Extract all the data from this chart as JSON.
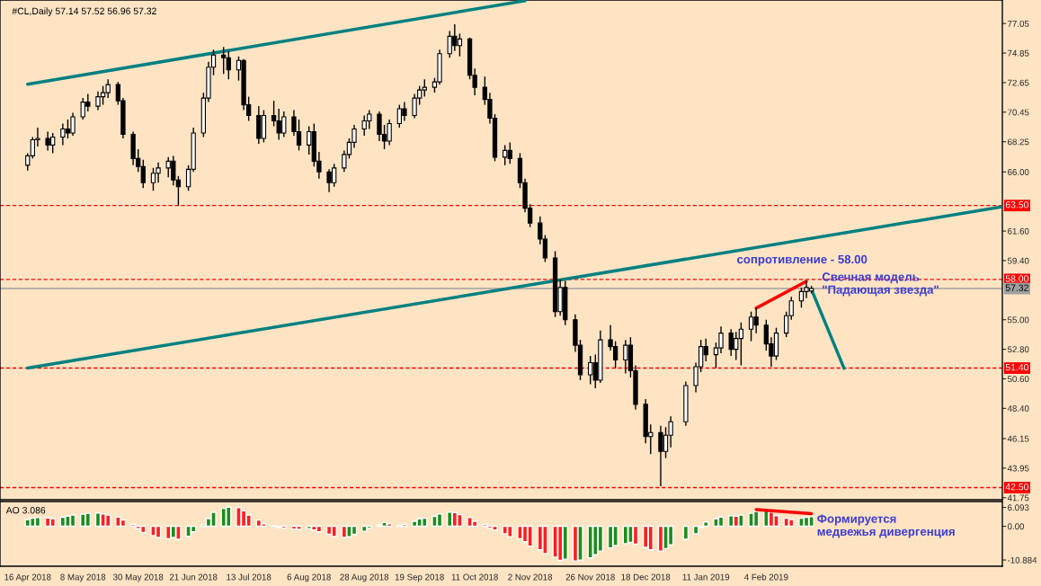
{
  "chart_data": [
    {
      "type": "candlestick",
      "title": "#CL,Daily 57.14 57.52 56.96 57.32",
      "x": [
        "2018-04-16",
        "2018-04-18",
        "2018-04-20",
        "2018-04-24",
        "2018-04-26",
        "2018-04-30",
        "2018-05-02",
        "2018-05-04",
        "2018-05-08",
        "2018-05-10",
        "2018-05-14",
        "2018-05-16",
        "2018-05-18",
        "2018-05-22",
        "2018-05-24",
        "2018-05-28",
        "2018-05-30",
        "2018-06-01",
        "2018-06-05",
        "2018-06-07",
        "2018-06-11",
        "2018-06-13",
        "2018-06-15",
        "2018-06-19",
        "2018-06-21",
        "2018-06-25",
        "2018-06-27",
        "2018-06-29",
        "2018-07-03",
        "2018-07-05",
        "2018-07-09",
        "2018-07-11",
        "2018-07-13",
        "2018-07-17",
        "2018-07-19",
        "2018-07-23",
        "2018-07-25",
        "2018-07-27",
        "2018-07-31",
        "2018-08-02",
        "2018-08-06",
        "2018-08-08",
        "2018-08-10",
        "2018-08-14",
        "2018-08-16",
        "2018-08-20",
        "2018-08-22",
        "2018-08-24",
        "2018-08-28",
        "2018-08-30",
        "2018-09-03",
        "2018-09-05",
        "2018-09-07",
        "2018-09-11",
        "2018-09-13",
        "2018-09-17",
        "2018-09-19",
        "2018-09-21",
        "2018-09-25",
        "2018-09-27",
        "2018-10-01",
        "2018-10-03",
        "2018-10-05",
        "2018-10-09",
        "2018-10-11",
        "2018-10-15",
        "2018-10-17",
        "2018-10-19",
        "2018-10-23",
        "2018-10-25",
        "2018-10-29",
        "2018-10-31",
        "2018-11-02",
        "2018-11-06",
        "2018-11-08",
        "2018-11-12",
        "2018-11-14",
        "2018-11-16",
        "2018-11-20",
        "2018-11-22",
        "2018-11-26",
        "2018-11-28",
        "2018-11-30",
        "2018-12-04",
        "2018-12-06",
        "2018-12-10",
        "2018-12-12",
        "2018-12-14",
        "2018-12-18",
        "2018-12-20",
        "2018-12-24",
        "2018-12-26",
        "2018-12-28",
        "2019-01-03",
        "2019-01-07",
        "2019-01-09",
        "2019-01-11",
        "2019-01-15",
        "2019-01-17",
        "2019-01-21",
        "2019-01-23",
        "2019-01-25",
        "2019-01-29",
        "2019-01-31",
        "2019-02-04",
        "2019-02-06",
        "2019-02-08",
        "2019-02-12",
        "2019-02-14",
        "2019-02-18",
        "2019-02-20",
        "2019-02-22"
      ],
      "ohlc": [
        [
          66.5,
          67.4,
          66.1,
          67.2
        ],
        [
          67.2,
          68.6,
          67.0,
          68.4
        ],
        [
          68.4,
          69.3,
          67.9,
          68.5
        ],
        [
          68.5,
          69.0,
          67.6,
          68.0
        ],
        [
          68.0,
          68.9,
          67.4,
          68.6
        ],
        [
          68.6,
          69.6,
          68.0,
          69.2
        ],
        [
          69.2,
          69.9,
          68.5,
          68.9
        ],
        [
          68.9,
          70.4,
          68.7,
          70.1
        ],
        [
          70.1,
          71.5,
          69.9,
          71.2
        ],
        [
          71.2,
          71.8,
          70.5,
          70.9
        ],
        [
          70.9,
          72.0,
          70.6,
          71.6
        ],
        [
          71.6,
          72.4,
          71.0,
          71.9
        ],
        [
          71.9,
          72.9,
          71.5,
          72.5
        ],
        [
          72.5,
          72.7,
          71.0,
          71.3
        ],
        [
          71.3,
          71.5,
          68.5,
          68.8
        ],
        [
          68.8,
          69.0,
          66.5,
          67.0
        ],
        [
          67.0,
          67.7,
          66.0,
          66.4
        ],
        [
          66.4,
          66.9,
          64.8,
          65.2
        ],
        [
          65.2,
          66.3,
          64.6,
          65.9
        ],
        [
          65.9,
          66.7,
          65.2,
          66.3
        ],
        [
          66.3,
          67.1,
          65.6,
          66.8
        ],
        [
          66.8,
          67.2,
          65.0,
          65.4
        ],
        [
          65.4,
          65.7,
          63.5,
          64.9
        ],
        [
          64.9,
          66.5,
          64.6,
          66.2
        ],
        [
          66.2,
          69.3,
          66.0,
          68.9
        ],
        [
          68.9,
          71.9,
          68.6,
          71.5
        ],
        [
          71.5,
          74.2,
          71.2,
          73.8
        ],
        [
          73.8,
          75.1,
          73.2,
          74.7
        ],
        [
          74.7,
          75.3,
          73.3,
          74.5
        ],
        [
          74.5,
          75.0,
          72.9,
          73.6
        ],
        [
          73.6,
          74.6,
          72.8,
          74.3
        ],
        [
          74.3,
          74.4,
          70.6,
          71.0
        ],
        [
          71.0,
          71.6,
          69.8,
          70.2
        ],
        [
          70.2,
          70.9,
          68.1,
          68.5
        ],
        [
          68.5,
          70.6,
          68.2,
          70.2
        ],
        [
          70.2,
          71.3,
          69.4,
          69.8
        ],
        [
          69.8,
          70.7,
          68.4,
          68.9
        ],
        [
          68.9,
          70.5,
          68.6,
          70.1
        ],
        [
          70.1,
          70.6,
          68.7,
          69.0
        ],
        [
          69.0,
          69.9,
          67.6,
          68.0
        ],
        [
          68.0,
          69.4,
          67.3,
          69.0
        ],
        [
          69.0,
          69.6,
          66.4,
          66.8
        ],
        [
          66.8,
          67.5,
          65.5,
          66.0
        ],
        [
          66.0,
          66.2,
          64.5,
          65.2
        ],
        [
          65.2,
          66.6,
          64.9,
          66.3
        ],
        [
          66.3,
          67.6,
          66.0,
          67.3
        ],
        [
          67.3,
          68.5,
          67.0,
          68.2
        ],
        [
          68.2,
          69.5,
          67.8,
          69.2
        ],
        [
          69.2,
          70.2,
          68.7,
          69.8
        ],
        [
          69.8,
          70.6,
          69.2,
          70.3
        ],
        [
          70.3,
          70.5,
          68.3,
          68.8
        ],
        [
          68.8,
          69.5,
          67.7,
          68.3
        ],
        [
          68.3,
          69.9,
          68.0,
          69.6
        ],
        [
          69.6,
          71.0,
          69.3,
          70.7
        ],
        [
          70.7,
          71.2,
          69.8,
          70.2
        ],
        [
          70.2,
          71.8,
          70.0,
          71.5
        ],
        [
          71.5,
          72.4,
          71.0,
          72.1
        ],
        [
          72.1,
          72.9,
          71.6,
          72.3
        ],
        [
          72.3,
          73.0,
          71.9,
          72.7
        ],
        [
          72.7,
          75.1,
          72.5,
          74.8
        ],
        [
          74.8,
          76.5,
          74.5,
          76.1
        ],
        [
          76.1,
          77.0,
          75.0,
          75.4
        ],
        [
          75.4,
          76.3,
          74.6,
          75.9
        ],
        [
          75.9,
          76.0,
          72.9,
          73.2
        ],
        [
          73.2,
          73.7,
          71.7,
          72.3
        ],
        [
          72.3,
          73.1,
          71.0,
          71.4
        ],
        [
          71.4,
          71.9,
          69.6,
          70.0
        ],
        [
          70.0,
          70.3,
          66.8,
          67.1
        ],
        [
          67.1,
          68.0,
          66.5,
          67.6
        ],
        [
          67.6,
          68.2,
          66.6,
          67.0
        ],
        [
          67.0,
          67.4,
          64.8,
          65.2
        ],
        [
          65.2,
          65.5,
          63.0,
          63.3
        ],
        [
          63.3,
          63.6,
          61.9,
          62.2
        ],
        [
          62.2,
          62.7,
          60.6,
          61.0
        ],
        [
          61.0,
          61.3,
          59.3,
          59.6
        ],
        [
          59.6,
          60.1,
          55.2,
          55.6
        ],
        [
          55.6,
          58.0,
          55.3,
          57.4
        ],
        [
          57.4,
          57.9,
          54.6,
          55.0
        ],
        [
          55.0,
          55.4,
          52.6,
          53.1
        ],
        [
          53.1,
          53.5,
          50.5,
          50.9
        ],
        [
          50.9,
          52.3,
          50.2,
          51.8
        ],
        [
          51.8,
          52.4,
          49.9,
          50.5
        ],
        [
          50.5,
          54.2,
          50.3,
          53.5
        ],
        [
          53.5,
          54.6,
          52.7,
          53.0
        ],
        [
          53.0,
          53.4,
          51.4,
          52.0
        ],
        [
          52.0,
          53.5,
          51.0,
          53.1
        ],
        [
          53.1,
          53.7,
          50.7,
          51.2
        ],
        [
          51.2,
          51.6,
          48.3,
          48.7
        ],
        [
          48.7,
          49.1,
          45.8,
          46.3
        ],
        [
          46.3,
          47.2,
          45.0,
          46.6
        ],
        [
          46.6,
          47.1,
          42.6,
          45.2
        ],
        [
          45.2,
          47.0,
          44.7,
          46.4
        ],
        [
          46.4,
          47.8,
          45.5,
          47.4
        ],
        [
          47.4,
          50.4,
          47.1,
          50.1
        ],
        [
          50.1,
          51.8,
          49.6,
          51.5
        ],
        [
          51.5,
          53.5,
          51.1,
          53.0
        ],
        [
          53.0,
          53.6,
          51.9,
          52.4
        ],
        [
          52.4,
          53.3,
          51.4,
          52.9
        ],
        [
          52.9,
          54.5,
          52.5,
          54.0
        ],
        [
          54.0,
          54.3,
          52.3,
          52.8
        ],
        [
          52.8,
          54.1,
          52.0,
          53.6
        ],
        [
          53.6,
          54.8,
          51.6,
          54.3
        ],
        [
          54.3,
          55.6,
          53.4,
          55.2
        ],
        [
          55.2,
          55.9,
          54.0,
          54.6
        ],
        [
          54.6,
          55.0,
          52.7,
          53.2
        ],
        [
          53.2,
          53.7,
          51.5,
          52.3
        ],
        [
          52.3,
          54.4,
          52.0,
          54.0
        ],
        [
          54.0,
          55.6,
          53.7,
          55.3
        ],
        [
          55.3,
          56.7,
          55.0,
          56.4
        ],
        [
          56.4,
          57.4,
          55.9,
          57.1
        ],
        [
          57.1,
          57.9,
          56.6,
          57.4
        ],
        [
          57.14,
          57.52,
          56.96,
          57.32
        ]
      ],
      "xlim": [
        "2018-04-05",
        "2019-05-09"
      ],
      "ylim": [
        41.6,
        78.8
      ],
      "yticks": [
        77.05,
        74.85,
        72.65,
        70.45,
        68.25,
        {
          "value": 66,
          "label": "66.00"
        },
        {
          "value": 61.6,
          "label": "61.60"
        },
        {
          "value": 59.4,
          "label": "59.40"
        },
        {
          "value": 55,
          "label": "55.00"
        },
        {
          "value": 52.8,
          "label": "52.80"
        },
        {
          "value": 50.6,
          "label": "50.60"
        },
        {
          "value": 48.4,
          "label": "48.40"
        },
        46.15,
        43.95,
        41.75
      ],
      "tick_labels": "y",
      "ref_lines": [
        {
          "axis": "y",
          "value": 63.5,
          "label": "63.50",
          "color": "#ff0000",
          "line_style": "dashed"
        },
        {
          "axis": "y",
          "value": 58.0,
          "label": "58.00",
          "color": "#ff0000",
          "line_style": "dashed"
        },
        {
          "axis": "y",
          "value": 57.32,
          "label": "57.32",
          "color": "#a0a0a0",
          "line_style": "solid"
        },
        {
          "axis": "y",
          "value": 51.4,
          "label": "51.40",
          "color": "#ff0000",
          "line_style": "dashed"
        },
        {
          "axis": "y",
          "value": 42.5,
          "label": "42.50",
          "color": "#ff0000",
          "line_style": "dashed"
        }
      ],
      "series": [
        {
          "type": "line",
          "color": "#008080",
          "x": [
            "2018-04-16",
            "2018-10-31"
          ],
          "values": [
            72.53,
            78.75
          ]
        },
        {
          "type": "line",
          "color": "#008080",
          "x": [
            "2018-04-16",
            "2019-05-09"
          ],
          "values": [
            51.4,
            63.41
          ]
        },
        {
          "type": "line",
          "color": "#ff0000",
          "x": [
            "2019-01-31",
            "2019-02-20"
          ],
          "values": [
            55.86,
            57.86
          ]
        },
        {
          "type": "line",
          "color": "#008080",
          "x": [
            "2019-02-22",
            "2019-03-07"
          ],
          "values": [
            57.26,
            51.38
          ]
        }
      ],
      "annotations": [
        "сопротивление - 58.00",
        "Свечная модель\n\"Падающая звезда\""
      ]
    },
    {
      "type": "bar",
      "title": "AO 3.086",
      "x": [
        "2018-04-16",
        "2018-04-18",
        "2018-04-20",
        "2018-04-24",
        "2018-04-26",
        "2018-04-30",
        "2018-05-02",
        "2018-05-04",
        "2018-05-08",
        "2018-05-10",
        "2018-05-14",
        "2018-05-16",
        "2018-05-18",
        "2018-05-22",
        "2018-05-24",
        "2018-05-28",
        "2018-05-30",
        "2018-06-01",
        "2018-06-05",
        "2018-06-07",
        "2018-06-11",
        "2018-06-13",
        "2018-06-15",
        "2018-06-19",
        "2018-06-21",
        "2018-06-25",
        "2018-06-27",
        "2018-06-29",
        "2018-07-03",
        "2018-07-05",
        "2018-07-09",
        "2018-07-11",
        "2018-07-13",
        "2018-07-17",
        "2018-07-19",
        "2018-07-23",
        "2018-07-25",
        "2018-07-27",
        "2018-07-31",
        "2018-08-02",
        "2018-08-06",
        "2018-08-08",
        "2018-08-10",
        "2018-08-14",
        "2018-08-16",
        "2018-08-20",
        "2018-08-22",
        "2018-08-24",
        "2018-08-28",
        "2018-08-30",
        "2018-09-03",
        "2018-09-05",
        "2018-09-07",
        "2018-09-11",
        "2018-09-13",
        "2018-09-17",
        "2018-09-19",
        "2018-09-21",
        "2018-09-25",
        "2018-09-27",
        "2018-10-01",
        "2018-10-03",
        "2018-10-05",
        "2018-10-09",
        "2018-10-11",
        "2018-10-15",
        "2018-10-17",
        "2018-10-19",
        "2018-10-23",
        "2018-10-25",
        "2018-10-29",
        "2018-10-31",
        "2018-11-02",
        "2018-11-06",
        "2018-11-08",
        "2018-11-12",
        "2018-11-14",
        "2018-11-16",
        "2018-11-20",
        "2018-11-22",
        "2018-11-26",
        "2018-11-28",
        "2018-11-30",
        "2018-12-04",
        "2018-12-06",
        "2018-12-10",
        "2018-12-12",
        "2018-12-14",
        "2018-12-18",
        "2018-12-20",
        "2018-12-24",
        "2018-12-26",
        "2018-12-28",
        "2019-01-03",
        "2019-01-07",
        "2019-01-09",
        "2019-01-11",
        "2019-01-15",
        "2019-01-17",
        "2019-01-21",
        "2019-01-23",
        "2019-01-25",
        "2019-01-29",
        "2019-01-31",
        "2019-02-04",
        "2019-02-06",
        "2019-02-08",
        "2019-02-12",
        "2019-02-14",
        "2019-02-18",
        "2019-02-20",
        "2019-02-22"
      ],
      "values": [
        2.2,
        2.6,
        2.8,
        2.7,
        2.5,
        2.9,
        3.3,
        3.6,
        3.9,
        4.2,
        4.3,
        4.0,
        3.6,
        3.0,
        2.0,
        0.6,
        -0.8,
        -2.0,
        -3.0,
        -3.6,
        -4.0,
        -3.6,
        -4.2,
        -3.2,
        -1.8,
        0.5,
        2.5,
        4.5,
        5.8,
        6.2,
        6.0,
        5.0,
        3.6,
        2.0,
        0.8,
        0.2,
        -0.4,
        -0.6,
        -0.9,
        -1.0,
        -0.8,
        -1.2,
        -1.8,
        -2.6,
        -3.3,
        -3.6,
        -3.4,
        -2.6,
        -1.6,
        -0.6,
        0.4,
        1.2,
        0.8,
        0.2,
        0.6,
        1.6,
        2.4,
        2.6,
        3.2,
        4.0,
        4.6,
        4.4,
        3.8,
        2.8,
        1.6,
        0.6,
        -0.6,
        -1.2,
        -2.4,
        -3.4,
        -4.0,
        -5.0,
        -6.4,
        -7.6,
        -8.8,
        -10.0,
        -11.0,
        -10.6,
        -11.2,
        -10.9,
        -10.2,
        -9.2,
        -8.0,
        -7.0,
        -6.2,
        -5.6,
        -5.2,
        -5.8,
        -6.8,
        -7.6,
        -8.0,
        -7.2,
        -6.0,
        -4.2,
        -2.4,
        -0.4,
        1.4,
        2.4,
        3.0,
        3.4,
        3.3,
        3.6,
        4.2,
        4.8,
        5.2,
        4.6,
        3.4,
        2.6,
        2.2,
        2.6,
        2.9,
        3.086
      ],
      "colors": [
        "#1e8c1e",
        "#1e8c1e",
        "#1e8c1e",
        "#ff1e1e",
        "#ff1e1e",
        "#1e8c1e",
        "#1e8c1e",
        "#1e8c1e",
        "#1e8c1e",
        "#1e8c1e",
        "#1e8c1e",
        "#ff1e1e",
        "#ff1e1e",
        "#ff1e1e",
        "#ff1e1e",
        "#ff1e1e",
        "#ff1e1e",
        "#ff1e1e",
        "#ff1e1e",
        "#ff1e1e",
        "#ff1e1e",
        "#1e8c1e",
        "#ff1e1e",
        "#1e8c1e",
        "#1e8c1e",
        "#1e8c1e",
        "#1e8c1e",
        "#1e8c1e",
        "#1e8c1e",
        "#1e8c1e",
        "#ff1e1e",
        "#ff1e1e",
        "#ff1e1e",
        "#ff1e1e",
        "#ff1e1e",
        "#ff1e1e",
        "#ff1e1e",
        "#ff1e1e",
        "#ff1e1e",
        "#ff1e1e",
        "#1e8c1e",
        "#ff1e1e",
        "#ff1e1e",
        "#ff1e1e",
        "#ff1e1e",
        "#ff1e1e",
        "#1e8c1e",
        "#1e8c1e",
        "#1e8c1e",
        "#1e8c1e",
        "#1e8c1e",
        "#1e8c1e",
        "#ff1e1e",
        "#ff1e1e",
        "#1e8c1e",
        "#1e8c1e",
        "#1e8c1e",
        "#1e8c1e",
        "#1e8c1e",
        "#1e8c1e",
        "#1e8c1e",
        "#ff1e1e",
        "#ff1e1e",
        "#ff1e1e",
        "#ff1e1e",
        "#ff1e1e",
        "#ff1e1e",
        "#ff1e1e",
        "#ff1e1e",
        "#ff1e1e",
        "#ff1e1e",
        "#ff1e1e",
        "#ff1e1e",
        "#ff1e1e",
        "#ff1e1e",
        "#ff1e1e",
        "#ff1e1e",
        "#1e8c1e",
        "#ff1e1e",
        "#1e8c1e",
        "#1e8c1e",
        "#1e8c1e",
        "#1e8c1e",
        "#1e8c1e",
        "#1e8c1e",
        "#1e8c1e",
        "#1e8c1e",
        "#ff1e1e",
        "#ff1e1e",
        "#ff1e1e",
        "#ff1e1e",
        "#1e8c1e",
        "#1e8c1e",
        "#1e8c1e",
        "#1e8c1e",
        "#1e8c1e",
        "#1e8c1e",
        "#1e8c1e",
        "#1e8c1e",
        "#1e8c1e",
        "#ff1e1e",
        "#1e8c1e",
        "#1e8c1e",
        "#1e8c1e",
        "#1e8c1e",
        "#ff1e1e",
        "#ff1e1e",
        "#ff1e1e",
        "#ff1e1e",
        "#1e8c1e",
        "#1e8c1e",
        "#1e8c1e"
      ],
      "xlim": [
        "2018-04-05",
        "2019-05-09"
      ],
      "xticks": [
        {
          "value": "2018-04-16",
          "label": "16 Apr 2018"
        },
        {
          "value": "2018-05-08",
          "label": "8 May 2018"
        },
        {
          "value": "2018-05-30",
          "label": "30 May 2018"
        },
        {
          "value": "2018-06-21",
          "label": "21 Jun 2018"
        },
        {
          "value": "2018-07-13",
          "label": "13 Jul 2018"
        },
        {
          "value": "2018-08-06",
          "label": "6 Aug 2018"
        },
        {
          "value": "2018-08-28",
          "label": "28 Aug 2018"
        },
        {
          "value": "2018-09-19",
          "label": "19 Sep 2018"
        },
        {
          "value": "2018-10-11",
          "label": "11 Oct 2018"
        },
        {
          "value": "2018-11-02",
          "label": "2 Nov 2018"
        },
        {
          "value": "2018-11-26",
          "label": "26 Nov 2018"
        },
        {
          "value": "2018-12-18",
          "label": "18 Dec 2018"
        },
        {
          "value": "2019-01-11",
          "label": "11 Jan 2019"
        },
        {
          "value": "2019-02-04",
          "label": "4 Feb 2019"
        }
      ],
      "ylim": [
        -12.9,
        8.0
      ],
      "yticks": [
        6.093,
        {
          "value": 0,
          "label": "0.00"
        },
        -10.884
      ],
      "series": [
        {
          "type": "line",
          "color": "#ff0000",
          "x": [
            "2019-01-31",
            "2019-02-22"
          ],
          "values": [
            5.4,
            4.1
          ]
        }
      ],
      "annotations": [
        "Формируется\nмедвежья дивергенция"
      ]
    }
  ]
}
